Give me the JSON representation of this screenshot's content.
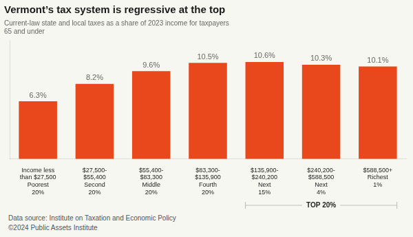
{
  "chart_data": {
    "type": "bar",
    "title": "Vermont’s tax system is regressive at the top",
    "subtitle": "Current-law state and local taxes as a share of 2023 income for taxpayers\n65 and under",
    "categories": [
      "Income less\nthan $27,500\nPoorest\n20%",
      "$27,500-\n$55,400\nSecond\n20%",
      "$55,400-\n$83,300\nMiddle\n20%",
      "$83,300-\n$135,900\nFourth\n20%",
      "$135,900-\n$240,200\nNext\n15%",
      "$240,200-\n$588,500\nNext\n4%",
      "$588,500+\nRichest\n1%"
    ],
    "values": [
      6.3,
      8.2,
      9.6,
      10.5,
      10.6,
      10.3,
      10.1
    ],
    "value_labels": [
      "6.3%",
      "8.2%",
      "9.6%",
      "10.5%",
      "10.6%",
      "10.3%",
      "10.1%"
    ],
    "data_labels": true,
    "color": "#E8481C",
    "ylim": [
      0,
      13.0
    ],
    "grid": false,
    "tick_labels": "x",
    "annotations": [
      "TOP 20%"
    ],
    "source": "Data source: Institute on Taxation and Economic Policy",
    "copyright": "©2024 Public Assets Institute"
  }
}
